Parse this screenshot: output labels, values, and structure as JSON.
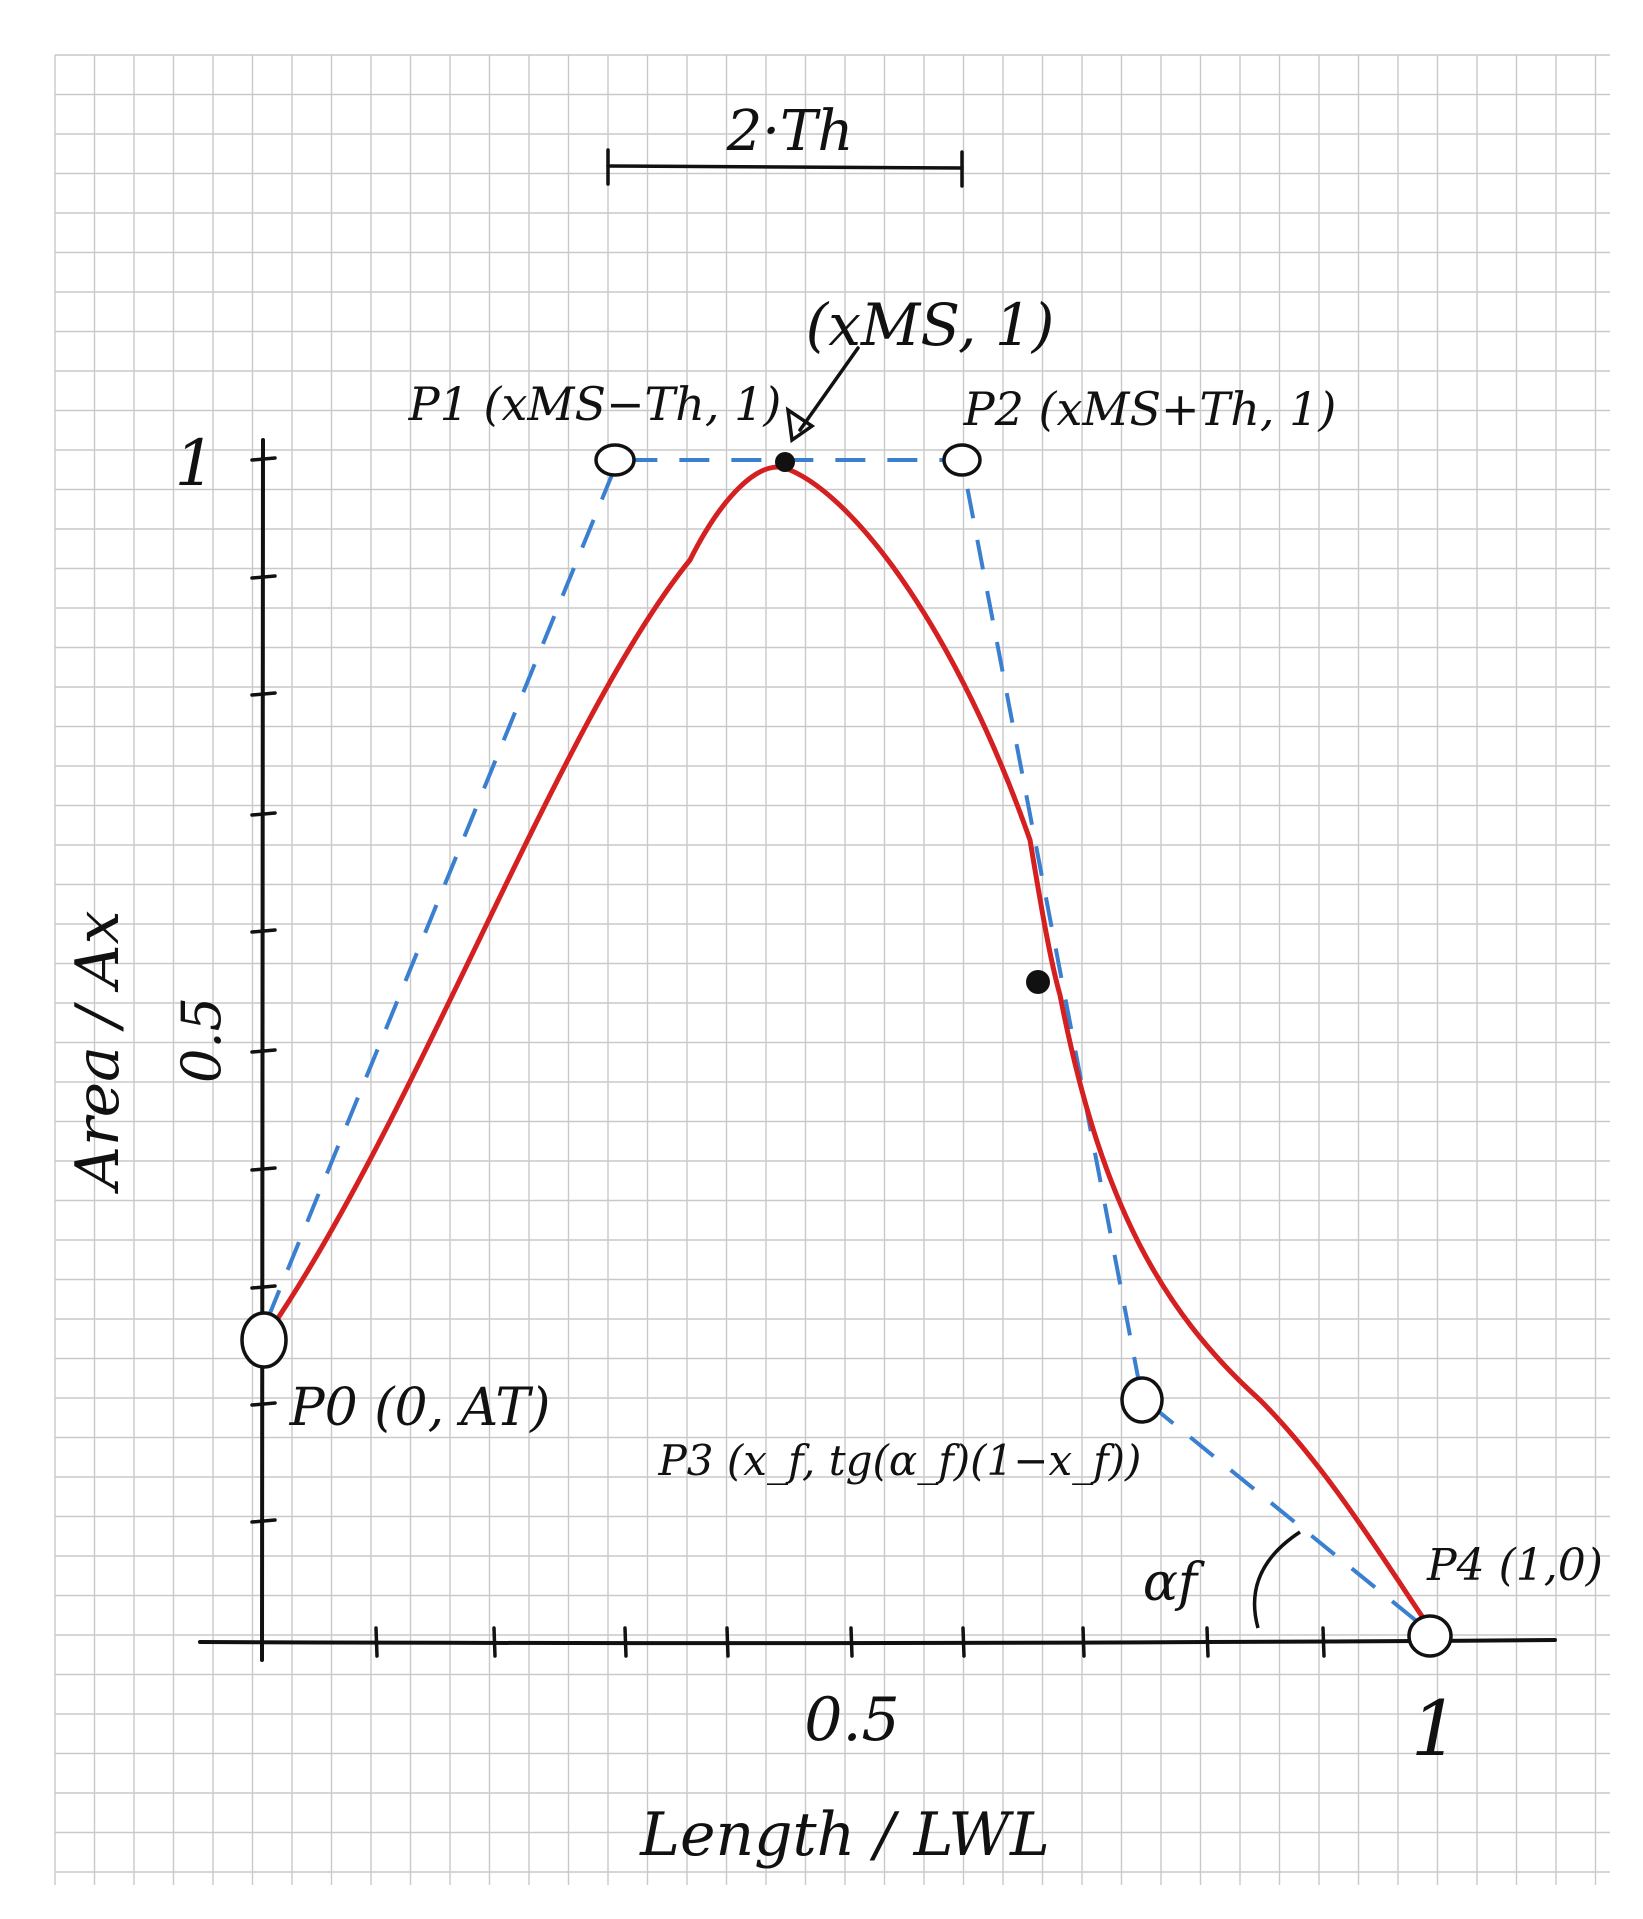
{
  "labels": {
    "y_axis_title": "Area / Ax",
    "x_axis_title": "Length / LWL",
    "y_tick_1": "1",
    "y_tick_half": "0.5",
    "x_tick_half": "0.5",
    "x_tick_1": "1",
    "width_dim": "2·Th",
    "peak": "(xMS, 1)",
    "p1": "P1 (xMS−Th, 1)",
    "p2": "P2 (xMS+Th, 1)",
    "p0": "P0 (0, AT)",
    "p3": "P3 (x_f, tg(α_f)(1−x_f))",
    "p4": "P4 (1,0)",
    "angle": "αf"
  },
  "colors": {
    "curve": "#d42020",
    "control_polygon": "#3a7fd0",
    "grid": "#c9c9c9",
    "ink": "#111111"
  }
}
